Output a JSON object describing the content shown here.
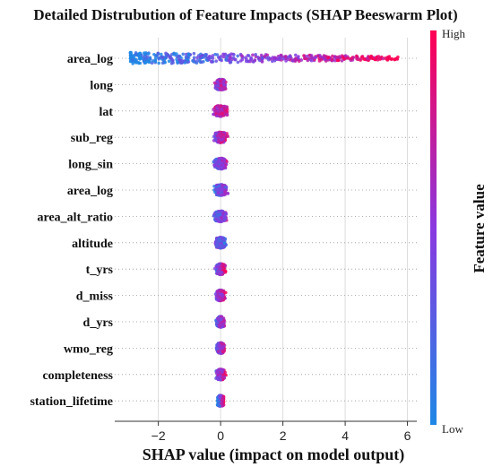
{
  "chart_data": {
    "type": "scatter",
    "subtype": "beeswarm",
    "title": "Detailed Distrubution of Feature Impacts (SHAP Beeswarm Plot)",
    "xlabel": "SHAP value (impact on model output)",
    "xlim": [
      -3.4,
      6.3
    ],
    "xticks": [
      "−2",
      "0",
      "2",
      "4",
      "6"
    ],
    "xtick_values": [
      -2,
      0,
      2,
      4,
      6
    ],
    "grid": "vertical",
    "features": [
      {
        "name": "area_log",
        "min": -2.9,
        "max": 5.7,
        "spread": 0.4
      },
      {
        "name": "long",
        "min": -1.2,
        "max": 0.7,
        "spread": 0.28
      },
      {
        "name": "lat",
        "min": -1.5,
        "max": 0.5,
        "spread": 0.34
      },
      {
        "name": "sub_reg",
        "min": -0.8,
        "max": 0.5,
        "spread": 0.3
      },
      {
        "name": "long_sin",
        "min": -0.6,
        "max": 0.6,
        "spread": 0.3
      },
      {
        "name": "area_log",
        "min": -0.5,
        "max": 0.9,
        "spread": 0.3
      },
      {
        "name": "area_alt_ratio",
        "min": -0.4,
        "max": 0.6,
        "spread": 0.3
      },
      {
        "name": "altitude",
        "min": -0.7,
        "max": 0.3,
        "spread": 0.26
      },
      {
        "name": "t_yrs",
        "min": -0.3,
        "max": 0.2,
        "spread": 0.22
      },
      {
        "name": "d_miss",
        "min": -0.4,
        "max": 0.3,
        "spread": 0.22
      },
      {
        "name": "d_yrs",
        "min": -0.3,
        "max": 0.3,
        "spread": 0.22
      },
      {
        "name": "wmo_reg",
        "min": -0.3,
        "max": 0.2,
        "spread": 0.2
      },
      {
        "name": "completeness",
        "min": -0.3,
        "max": 0.2,
        "spread": 0.22
      },
      {
        "name": "station_lifetime",
        "min": -0.1,
        "max": 0.1,
        "spread": 0.18
      }
    ],
    "colorbar": {
      "title": "Feature value",
      "high_label": "High",
      "low_label": "Low",
      "low_color": "#1E88E5",
      "mid_color": "#8A38E0",
      "high_color": "#FF0052"
    }
  }
}
